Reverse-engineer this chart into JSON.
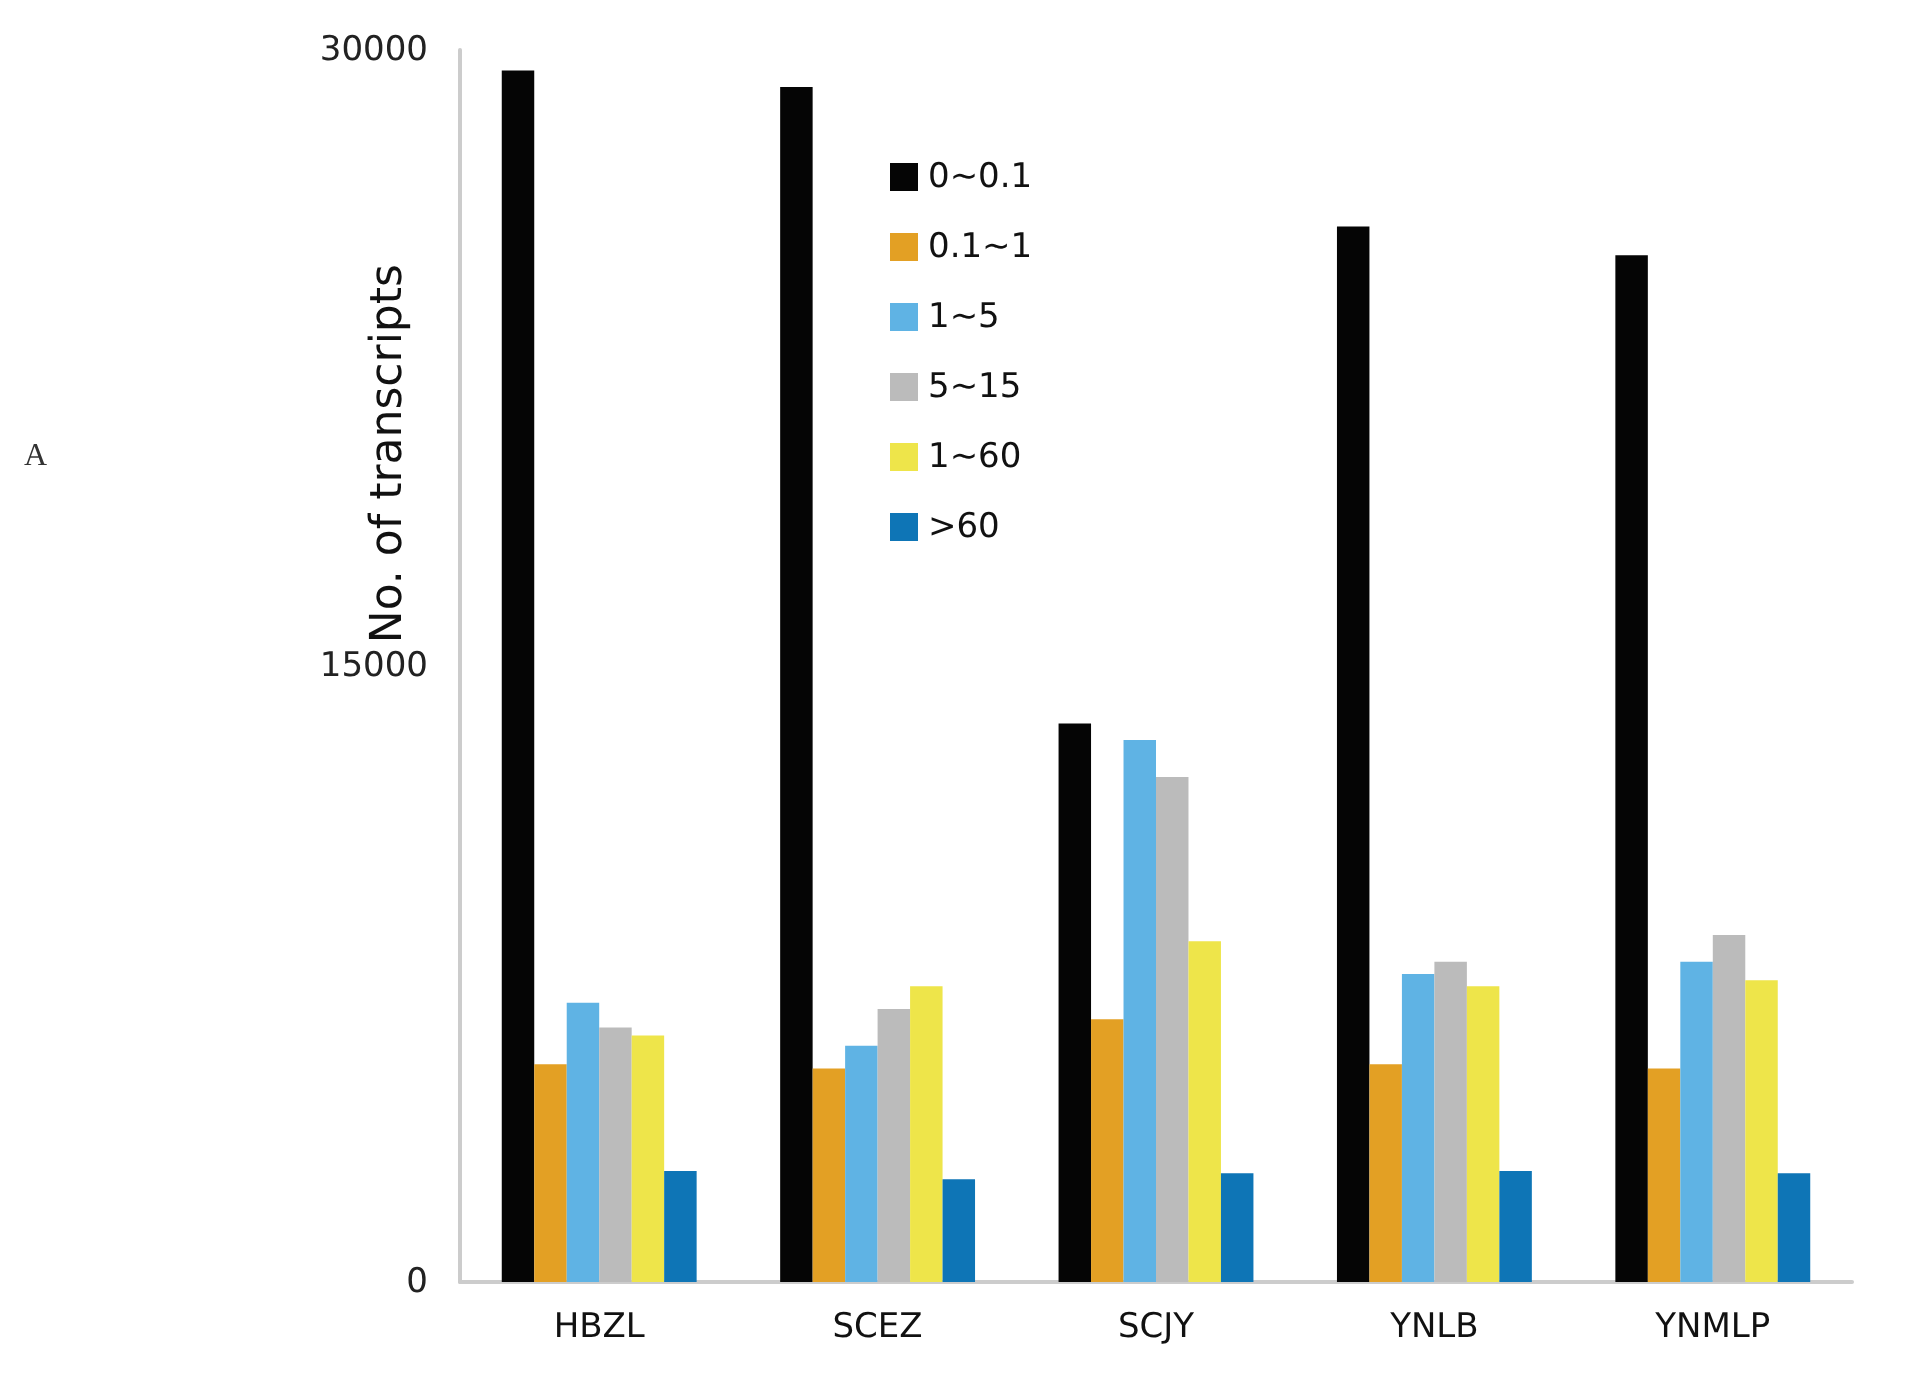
{
  "chart_data": {
    "type": "bar",
    "ylabel": "No. of transcripts",
    "annotations": [
      "A"
    ],
    "categories": [
      "HBZL",
      "SCEZ",
      "SCJY",
      "YNLB",
      "YNMLP"
    ],
    "series": [
      {
        "name": "0~0.1",
        "color": "#050505",
        "values": [
          29500,
          29100,
          13600,
          25700,
          25000
        ]
      },
      {
        "name": "0.1~1",
        "color": "#e3a024",
        "values": [
          5300,
          5200,
          6400,
          5300,
          5200
        ]
      },
      {
        "name": "1~5",
        "color": "#5fb3e4",
        "values": [
          6800,
          5750,
          13200,
          7500,
          7800
        ]
      },
      {
        "name": "5~15",
        "color": "#bbbbbb",
        "values": [
          6200,
          6650,
          12300,
          7800,
          8450
        ]
      },
      {
        "name": "1~60",
        "color": "#eee54a",
        "values": [
          6000,
          7200,
          8300,
          7200,
          7350
        ]
      },
      {
        "name": ">60",
        "color": "#0e75b6",
        "values": [
          2700,
          2500,
          2650,
          2700,
          2650
        ]
      }
    ],
    "ylim": [
      0,
      30000
    ],
    "yticks": [
      0,
      15000,
      30000
    ],
    "grid": false,
    "legend": "top"
  }
}
